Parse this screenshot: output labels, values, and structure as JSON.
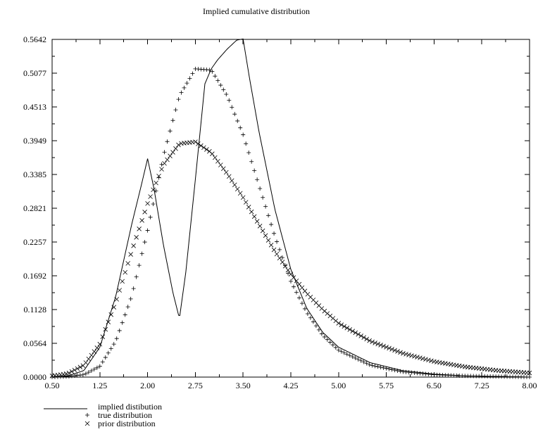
{
  "chart_data": {
    "type": "line",
    "title": "Implied cumulative distribution",
    "xlabel": "",
    "ylabel": "",
    "xlim": [
      0.5,
      8.0
    ],
    "ylim": [
      0.0,
      0.5642
    ],
    "x_ticks": [
      "0.50",
      "1.25",
      "2.00",
      "2.75",
      "3.50",
      "4.25",
      "5.00",
      "5.75",
      "6.50",
      "7.25",
      "8.00"
    ],
    "y_ticks": [
      "0.0000",
      "0.0564",
      "0.1128",
      "0.1692",
      "0.2257",
      "0.2821",
      "0.3385",
      "0.3949",
      "0.4513",
      "0.5077",
      "0.5642"
    ],
    "grid": false,
    "legend_position": "bottom-left",
    "series": [
      {
        "name": "implied distibution",
        "marker": "line",
        "x": [
          0.5,
          0.75,
          1.0,
          1.25,
          1.5,
          1.75,
          1.9,
          2.0,
          2.1,
          2.25,
          2.4,
          2.5,
          2.6,
          2.75,
          2.9,
          3.0,
          3.1,
          3.25,
          3.4,
          3.5,
          3.6,
          3.75,
          4.0,
          4.25,
          4.5,
          4.75,
          5.0,
          5.5,
          6.0,
          6.5,
          7.0,
          7.5,
          8.0
        ],
        "y": [
          0.0,
          0.002,
          0.011,
          0.05,
          0.135,
          0.255,
          0.32,
          0.365,
          0.315,
          0.22,
          0.14,
          0.098,
          0.175,
          0.33,
          0.49,
          0.515,
          0.53,
          0.548,
          0.563,
          0.565,
          0.5,
          0.41,
          0.28,
          0.18,
          0.115,
          0.075,
          0.05,
          0.024,
          0.011,
          0.005,
          0.002,
          0.001,
          0.0
        ]
      },
      {
        "name": "true distribution",
        "marker": "plus",
        "x": [
          0.5,
          0.75,
          1.0,
          1.25,
          1.5,
          1.75,
          2.0,
          2.25,
          2.5,
          2.75,
          3.0,
          3.25,
          3.5,
          3.75,
          4.0,
          4.25,
          4.5,
          4.75,
          5.0,
          5.5,
          6.0,
          6.5,
          7.0,
          7.5,
          8.0
        ],
        "y": [
          0.0,
          0.001,
          0.004,
          0.018,
          0.06,
          0.135,
          0.245,
          0.37,
          0.47,
          0.515,
          0.513,
          0.47,
          0.405,
          0.32,
          0.235,
          0.16,
          0.108,
          0.07,
          0.045,
          0.02,
          0.009,
          0.004,
          0.002,
          0.001,
          0.0
        ]
      },
      {
        "name": "prior distribution",
        "marker": "cross",
        "x": [
          0.5,
          0.75,
          1.0,
          1.25,
          1.5,
          1.75,
          2.0,
          2.25,
          2.5,
          2.75,
          3.0,
          3.25,
          3.5,
          3.75,
          4.0,
          4.25,
          4.5,
          4.75,
          5.0,
          5.5,
          6.0,
          6.5,
          7.0,
          7.5,
          8.0
        ],
        "y": [
          0.002,
          0.006,
          0.02,
          0.055,
          0.125,
          0.21,
          0.29,
          0.355,
          0.39,
          0.393,
          0.375,
          0.34,
          0.3,
          0.255,
          0.21,
          0.172,
          0.14,
          0.113,
          0.09,
          0.06,
          0.04,
          0.026,
          0.017,
          0.011,
          0.007
        ]
      }
    ]
  }
}
